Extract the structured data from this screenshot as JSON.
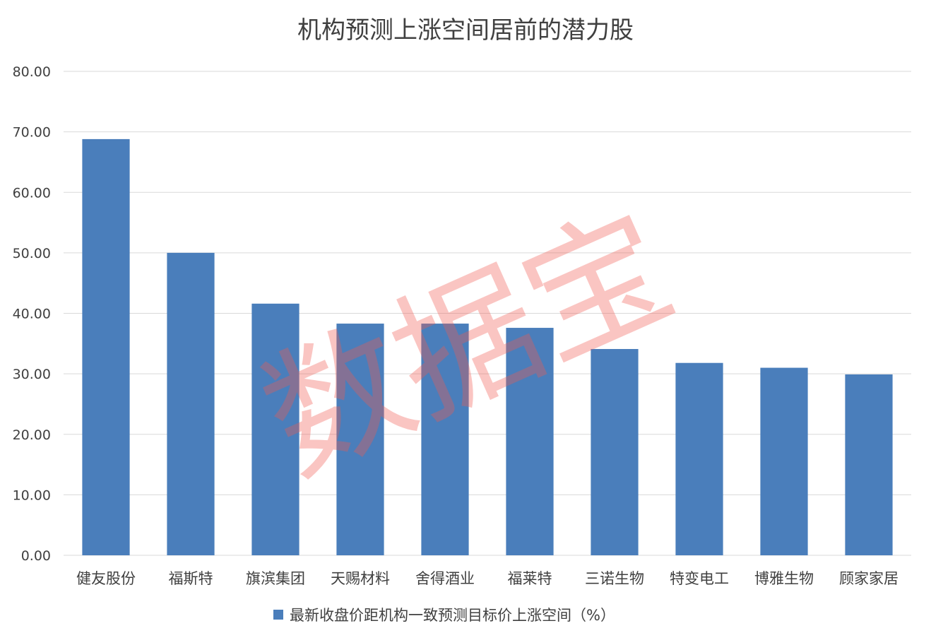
{
  "chart_data": {
    "type": "bar",
    "title": "机构预测上涨空间居前的潜力股",
    "categories": [
      "健友股份",
      "福斯特",
      "旗滨集团",
      "天赐材料",
      "舍得酒业",
      "福莱特",
      "三诺生物",
      "特变电工",
      "博雅生物",
      "顾家家居"
    ],
    "series": [
      {
        "name": "最新收盘价距机构一致预测目标价上涨空间（%）",
        "values": [
          68.8,
          50.0,
          41.6,
          38.3,
          38.3,
          37.6,
          34.1,
          31.8,
          31.0,
          29.9
        ]
      }
    ],
    "ylim": [
      0,
      80
    ],
    "yticks": [
      "0.00",
      "10.00",
      "20.00",
      "30.00",
      "40.00",
      "50.00",
      "60.00",
      "70.00",
      "80.00"
    ],
    "grid": true,
    "legend_position": "bottom",
    "bar_color": "#4a7ebb"
  },
  "watermark": "数据宝"
}
